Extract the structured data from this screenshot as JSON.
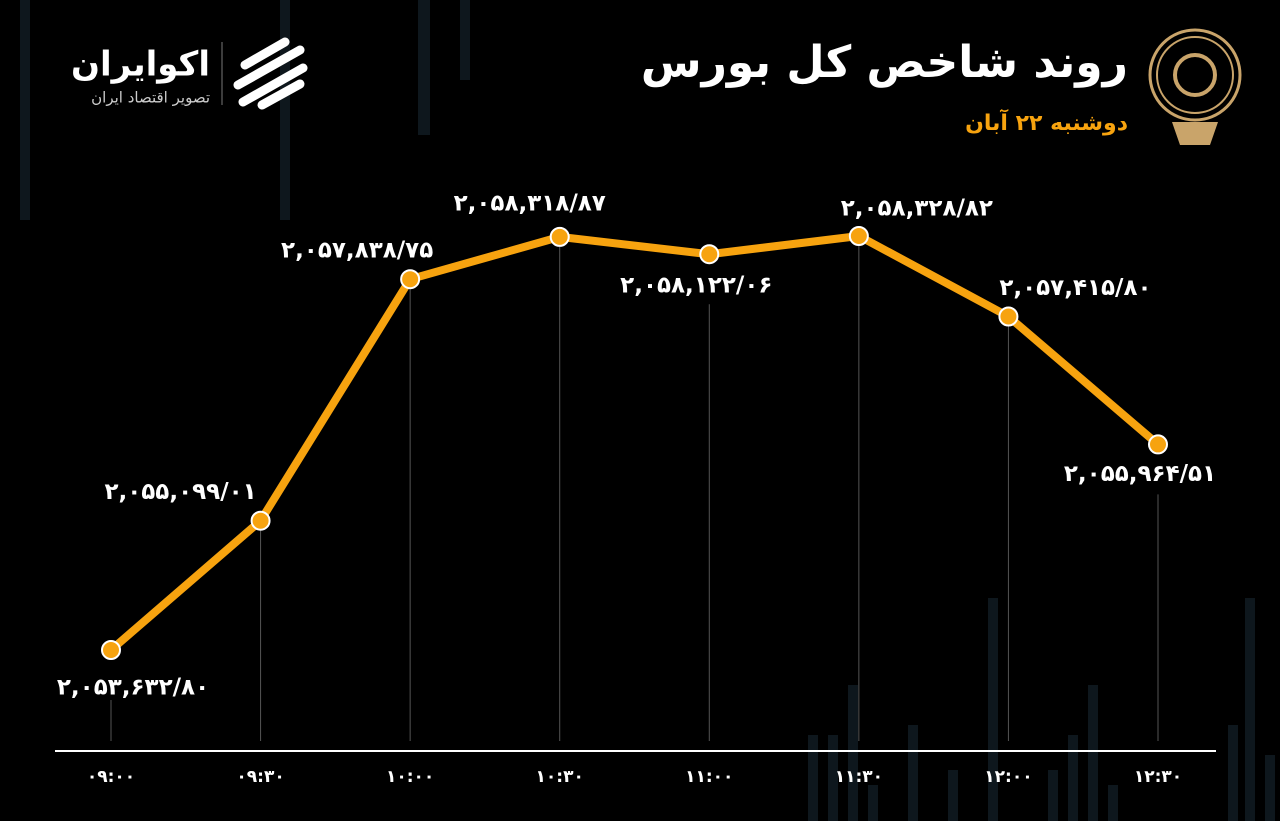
{
  "brand": {
    "name": "اکوایران",
    "tagline": "تصویر اقتصاد ایران"
  },
  "chart_data": {
    "type": "line",
    "title": "روند شاخص کل بورس",
    "subtitle": "دوشنبه ۲۲ آبان",
    "categories": [
      "۰۹:۰۰",
      "۰۹:۳۰",
      "۱۰:۰۰",
      "۱۰:۳۰",
      "۱۱:۰۰",
      "۱۱:۳۰",
      "۱۲:۰۰",
      "۱۲:۳۰"
    ],
    "values": [
      2053632.8,
      2055099.01,
      2057838.75,
      2058318.87,
      2058122.06,
      2058328.82,
      2057415.8,
      2055964.51
    ],
    "value_labels": [
      "۲,۰۵۳,۶۳۲/۸۰",
      "۲,۰۵۵,۰۹۹/۰۱",
      "۲,۰۵۷,۸۳۸/۷۵",
      "۲,۰۵۸,۳۱۸/۸۷",
      "۲,۰۵۸,۱۲۲/۰۶",
      "۲,۰۵۸,۳۲۸/۸۲",
      "۲,۰۵۷,۴۱۵/۸۰",
      "۲,۰۵۵,۹۶۴/۵۱"
    ],
    "color": "#f7a30f"
  }
}
